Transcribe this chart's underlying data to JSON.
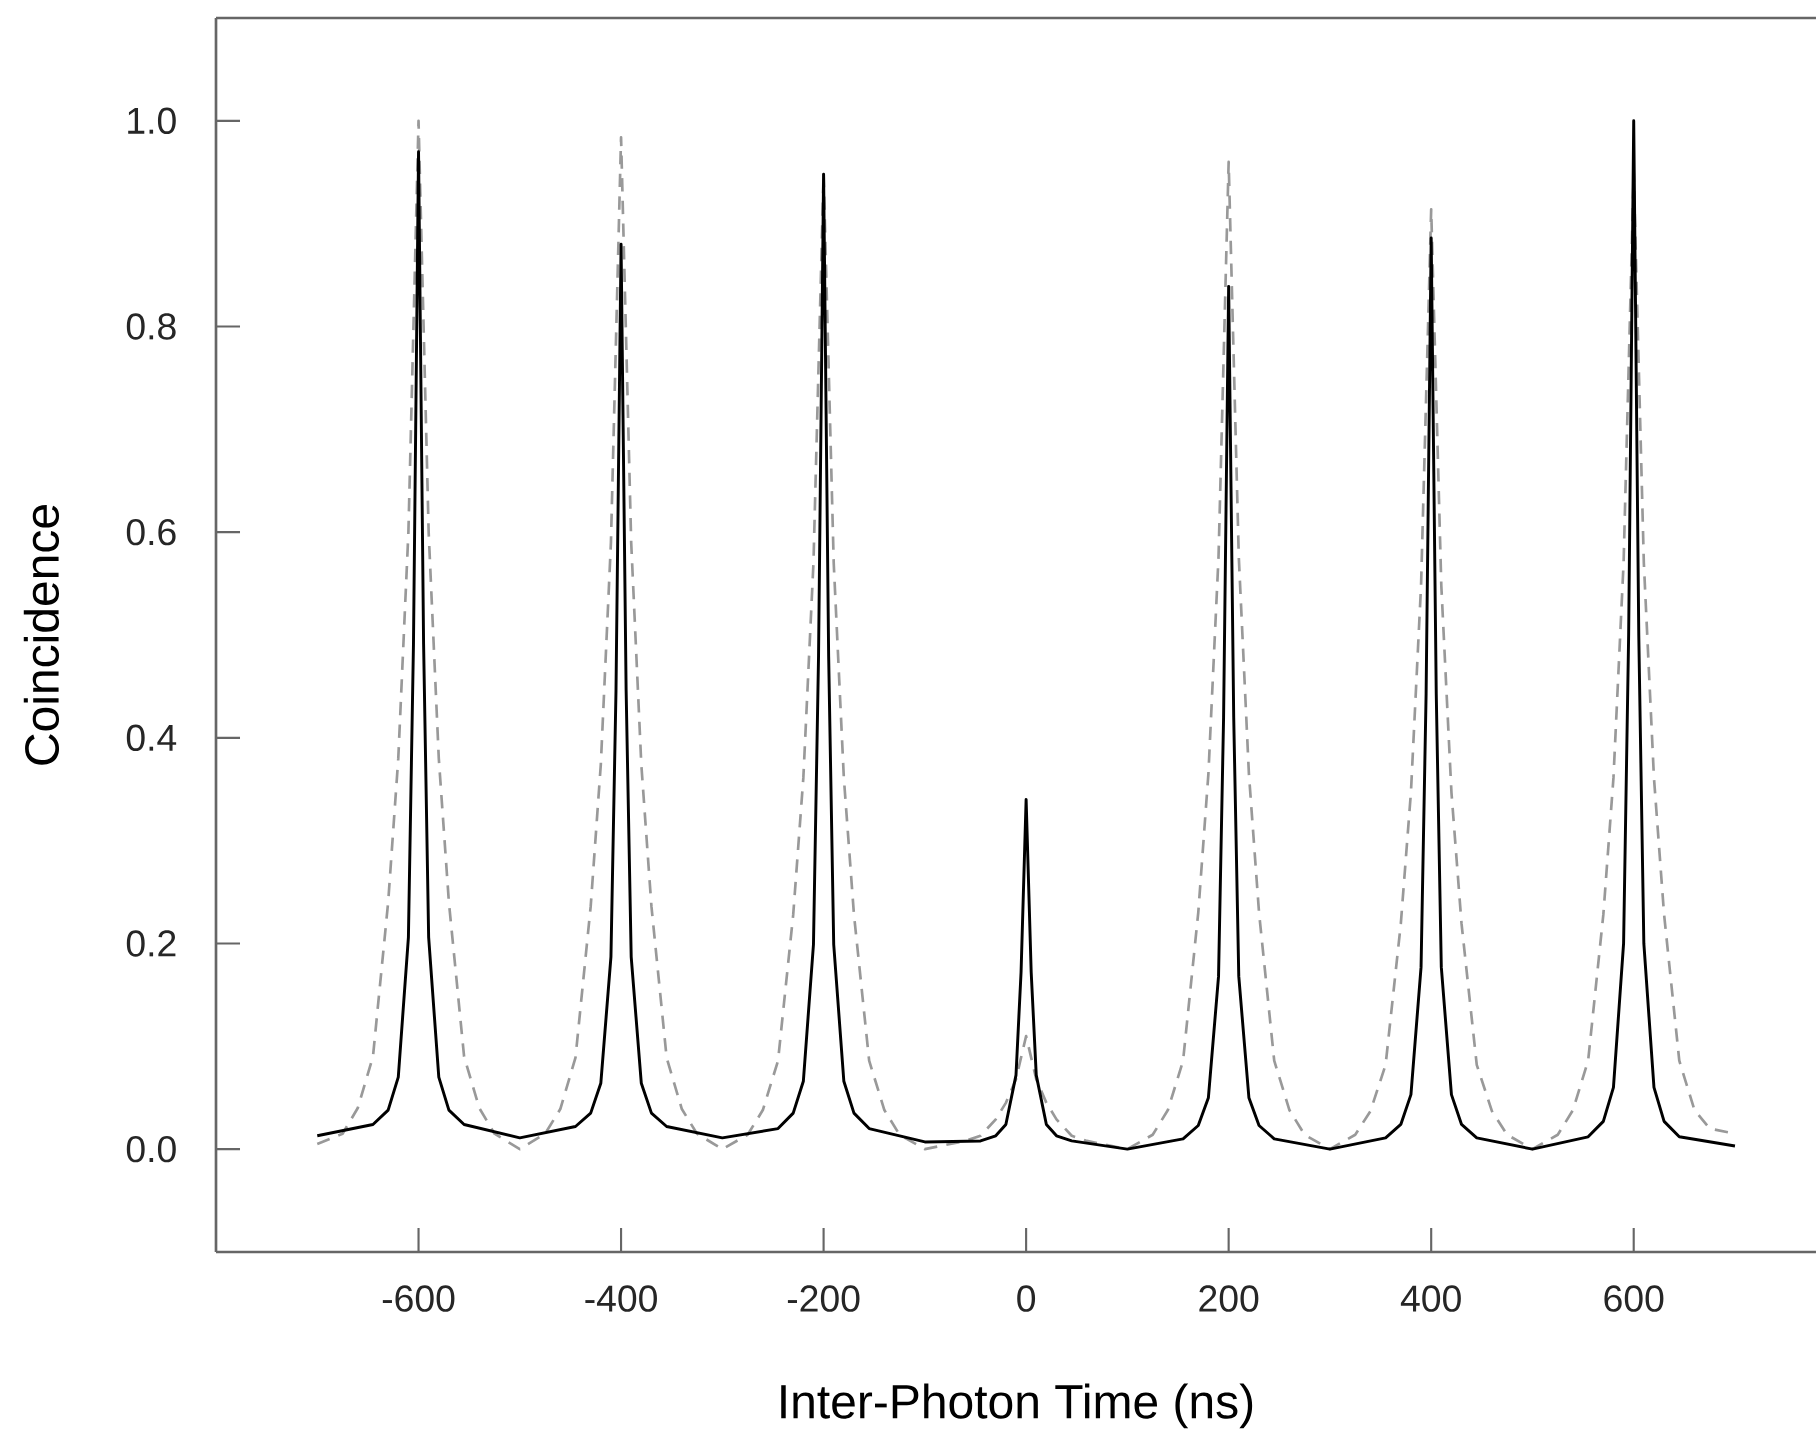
{
  "chart_data": {
    "type": "line",
    "xlabel": "Inter-Photon Time (ns)",
    "ylabel": "Coincidence",
    "xlim": [
      -800,
      780
    ],
    "ylim": [
      -0.1,
      1.1
    ],
    "xticks": [
      -600,
      -400,
      -200,
      0,
      200,
      400,
      600
    ],
    "yticks": [
      {
        "value": 0,
        "label": "0.0"
      },
      {
        "value": 0.2,
        "label": "0.2"
      },
      {
        "value": 0.4,
        "label": "0.4"
      },
      {
        "value": 0.6,
        "label": "0.6"
      },
      {
        "value": 0.8,
        "label": "0.8"
      },
      {
        "value": 1,
        "label": "1.0"
      }
    ],
    "marker": "none",
    "series": [
      {
        "color": "#999999",
        "line_style": "dashed",
        "x": [
          -700,
          -675,
          -660,
          -645,
          -630,
          -620,
          -610,
          -600,
          -590,
          -580,
          -570,
          -555,
          -540,
          -525,
          -500,
          -475,
          -460,
          -445,
          -430,
          -420,
          -410,
          -400,
          -390,
          -380,
          -370,
          -355,
          -340,
          -325,
          -300,
          -275,
          -260,
          -245,
          -230,
          -220,
          -210,
          -200,
          -190,
          -180,
          -170,
          -155,
          -140,
          -125,
          -100,
          -75,
          -60,
          -45,
          -30,
          -20,
          -10,
          0,
          10,
          20,
          30,
          45,
          60,
          75,
          100,
          125,
          140,
          155,
          170,
          180,
          190,
          200,
          210,
          220,
          230,
          245,
          260,
          275,
          300,
          325,
          340,
          355,
          370,
          380,
          390,
          400,
          410,
          420,
          430,
          445,
          460,
          475,
          500,
          525,
          540,
          555,
          570,
          580,
          590,
          600,
          610,
          620,
          630,
          645,
          660,
          675,
          700
        ],
        "values": [
          0.005,
          0.015,
          0.04,
          0.09,
          0.24,
          0.38,
          0.6,
          1.0,
          0.6,
          0.38,
          0.24,
          0.09,
          0.04,
          0.015,
          0.0,
          0.015,
          0.039,
          0.089,
          0.236,
          0.374,
          0.59,
          0.984,
          0.59,
          0.374,
          0.236,
          0.089,
          0.039,
          0.015,
          0.0,
          0.014,
          0.038,
          0.086,
          0.228,
          0.361,
          0.57,
          0.95,
          0.57,
          0.361,
          0.228,
          0.086,
          0.038,
          0.014,
          0.0,
          0.005,
          0.008,
          0.013,
          0.029,
          0.045,
          0.068,
          0.11,
          0.068,
          0.045,
          0.029,
          0.013,
          0.008,
          0.005,
          0.0,
          0.014,
          0.038,
          0.086,
          0.23,
          0.365,
          0.576,
          0.96,
          0.576,
          0.365,
          0.23,
          0.086,
          0.038,
          0.014,
          0.0,
          0.014,
          0.037,
          0.082,
          0.219,
          0.347,
          0.548,
          0.914,
          0.548,
          0.347,
          0.219,
          0.082,
          0.037,
          0.014,
          0.0,
          0.014,
          0.038,
          0.086,
          0.228,
          0.361,
          0.57,
          0.95,
          0.57,
          0.361,
          0.228,
          0.086,
          0.038,
          0.02,
          0.015
        ]
      },
      {
        "color": "#000000",
        "line_style": "solid",
        "x": [
          -700,
          -645,
          -630,
          -620,
          -610,
          -605,
          -600,
          -595,
          -590,
          -580,
          -570,
          -555,
          -500,
          -445,
          -430,
          -420,
          -410,
          -405,
          -400,
          -395,
          -390,
          -380,
          -370,
          -355,
          -300,
          -245,
          -230,
          -220,
          -210,
          -205,
          -200,
          -195,
          -190,
          -180,
          -170,
          -155,
          -100,
          -45,
          -30,
          -20,
          -10,
          -5,
          0,
          5,
          10,
          20,
          30,
          45,
          100,
          155,
          170,
          180,
          190,
          195,
          200,
          205,
          210,
          220,
          230,
          245,
          300,
          355,
          370,
          380,
          390,
          395,
          400,
          405,
          410,
          420,
          430,
          445,
          500,
          555,
          570,
          580,
          590,
          595,
          600,
          605,
          610,
          620,
          630,
          645,
          700
        ],
        "values": [
          0.013,
          0.024,
          0.038,
          0.07,
          0.206,
          0.491,
          0.97,
          0.491,
          0.206,
          0.07,
          0.038,
          0.024,
          0.011,
          0.022,
          0.035,
          0.064,
          0.187,
          0.446,
          0.88,
          0.446,
          0.187,
          0.064,
          0.035,
          0.022,
          0.011,
          0.02,
          0.035,
          0.066,
          0.199,
          0.479,
          0.948,
          0.479,
          0.199,
          0.066,
          0.035,
          0.02,
          0.007,
          0.008,
          0.013,
          0.024,
          0.072,
          0.172,
          0.34,
          0.172,
          0.072,
          0.024,
          0.013,
          0.008,
          0.0,
          0.01,
          0.023,
          0.05,
          0.168,
          0.42,
          0.839,
          0.42,
          0.168,
          0.05,
          0.023,
          0.01,
          0.0,
          0.011,
          0.024,
          0.053,
          0.177,
          0.443,
          0.886,
          0.443,
          0.177,
          0.053,
          0.024,
          0.011,
          0.0,
          0.012,
          0.027,
          0.06,
          0.2,
          0.5,
          1.0,
          0.5,
          0.2,
          0.06,
          0.027,
          0.012,
          0.003
        ]
      }
    ]
  }
}
